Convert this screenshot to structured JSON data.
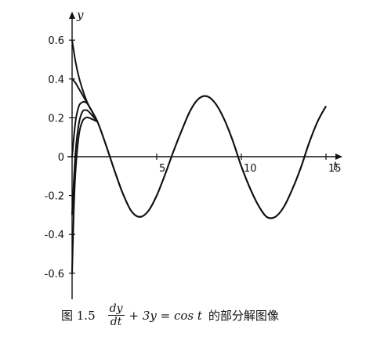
{
  "chart_data": {
    "type": "line",
    "xlabel": "t",
    "ylabel": "y",
    "xlim": [
      0,
      15.5
    ],
    "ylim": [
      -0.7,
      0.7
    ],
    "xticks": [
      5,
      10,
      15
    ],
    "yticks": [
      -0.6,
      -0.4,
      -0.2,
      0,
      0.2,
      0.4,
      0.6
    ],
    "x_tick_labels": [
      "5",
      "10",
      "15"
    ],
    "y_tick_labels": [
      "-0.6",
      "-0.4",
      "-0.2",
      "0",
      "0.2",
      "0.4",
      "0.6"
    ],
    "grid": false,
    "equation": "dy/dt + 3y = cos t",
    "series": [
      {
        "x": [
          0,
          0.2,
          0.4,
          0.6,
          0.8,
          1.0,
          1.5,
          2.0,
          2.5,
          3.0,
          3.5,
          4.0,
          4.5,
          5.0,
          5.5,
          6.0,
          6.5,
          7.0,
          7.5,
          8.0,
          8.5,
          9.0,
          9.5,
          10.0,
          10.5,
          11.0,
          11.5,
          12.0,
          12.5,
          13.0,
          13.5,
          14.0,
          14.5,
          15.0
        ],
        "y": [
          0.6,
          0.49,
          0.41,
          0.35,
          0.3,
          0.26,
          0.18,
          0.06,
          -0.07,
          -0.19,
          -0.28,
          -0.31,
          -0.28,
          -0.2,
          -0.09,
          0.03,
          0.14,
          0.24,
          0.3,
          0.31,
          0.27,
          0.19,
          0.08,
          -0.05,
          -0.16,
          -0.25,
          -0.31,
          -0.31,
          -0.26,
          -0.17,
          -0.06,
          0.07,
          0.18,
          0.26
        ]
      },
      {
        "x": [
          0,
          0.2,
          0.4,
          0.6,
          0.8,
          1.0,
          1.5,
          2.0,
          2.5,
          3.0,
          3.5,
          4.0,
          4.5,
          5.0,
          5.5,
          6.0,
          6.5,
          7.0,
          7.5,
          8.0,
          8.5,
          9.0,
          9.5,
          10.0,
          10.5,
          11.0,
          11.5,
          12.0,
          12.5,
          13.0,
          13.5,
          14.0,
          14.5,
          15.0
        ],
        "y": [
          0.4,
          0.38,
          0.35,
          0.32,
          0.29,
          0.26,
          0.18,
          0.06,
          -0.07,
          -0.19,
          -0.28,
          -0.31,
          -0.28,
          -0.2,
          -0.09,
          0.03,
          0.14,
          0.24,
          0.3,
          0.31,
          0.27,
          0.19,
          0.08,
          -0.05,
          -0.16,
          -0.25,
          -0.31,
          -0.31,
          -0.26,
          -0.17,
          -0.06,
          0.07,
          0.18,
          0.26
        ]
      },
      {
        "x": [
          0,
          0.2,
          0.4,
          0.6,
          0.8,
          1.0,
          1.5
        ],
        "y": [
          0.0,
          0.18,
          0.26,
          0.28,
          0.28,
          0.26,
          0.18
        ]
      },
      {
        "x": [
          0,
          0.2,
          0.4,
          0.6,
          0.8,
          1.0,
          1.5
        ],
        "y": [
          -0.3,
          0.02,
          0.17,
          0.23,
          0.24,
          0.23,
          0.18
        ]
      },
      {
        "x": [
          0,
          0.1,
          0.2,
          0.4,
          0.6,
          0.8,
          1.0,
          1.5
        ],
        "y": [
          -0.6,
          -0.28,
          -0.08,
          0.11,
          0.18,
          0.2,
          0.2,
          0.18
        ]
      }
    ]
  },
  "caption": {
    "figure_number": "图 1.5",
    "frac_num": "dy",
    "frac_den": "dt",
    "equation_rest": "+ 3y = cos t",
    "suffix": "的部分解图像"
  }
}
